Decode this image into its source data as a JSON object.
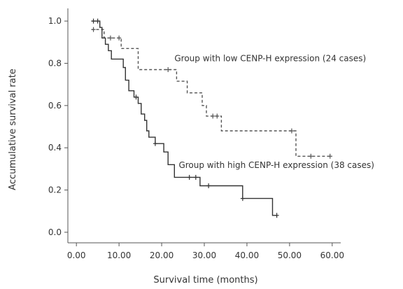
{
  "chart_data": {
    "type": "line",
    "xlabel": "Survival time (months)",
    "ylabel": "Accumulative survival rate",
    "xlim": [
      -2,
      62
    ],
    "ylim": [
      -0.05,
      1.06
    ],
    "xticks": [
      "0.00",
      "10.00",
      "20.00",
      "30.00",
      "40.00",
      "50.00",
      "60.00"
    ],
    "yticks": [
      "0.0",
      "0.2",
      "0.4",
      "0.6",
      "0.8",
      "1.0"
    ],
    "xtick_values": [
      0,
      10,
      20,
      30,
      40,
      50,
      60
    ],
    "ytick_values": [
      0,
      0.2,
      0.4,
      0.6,
      0.8,
      1.0
    ],
    "grid": false,
    "series": [
      {
        "name": "Group with low CENP-H expression (24 cases)",
        "style": "dashed",
        "color": "#555555",
        "steps": [
          [
            3.5,
            0.96
          ],
          [
            6.5,
            0.96
          ],
          [
            6.5,
            0.92
          ],
          [
            10.5,
            0.92
          ],
          [
            10.5,
            0.87
          ],
          [
            14.5,
            0.87
          ],
          [
            14.5,
            0.77
          ],
          [
            23.5,
            0.77
          ],
          [
            23.5,
            0.715
          ],
          [
            26,
            0.715
          ],
          [
            26,
            0.66
          ],
          [
            29.5,
            0.66
          ],
          [
            29.5,
            0.6
          ],
          [
            30.5,
            0.6
          ],
          [
            30.5,
            0.55
          ],
          [
            34,
            0.55
          ],
          [
            34,
            0.48
          ],
          [
            51.5,
            0.48
          ],
          [
            51.5,
            0.36
          ],
          [
            60,
            0.36
          ]
        ],
        "censored": [
          [
            4,
            0.96
          ],
          [
            8,
            0.92
          ],
          [
            10,
            0.92
          ],
          [
            21.5,
            0.77
          ],
          [
            32,
            0.55
          ],
          [
            33,
            0.55
          ],
          [
            50.5,
            0.48
          ],
          [
            55,
            0.36
          ],
          [
            59.5,
            0.36
          ]
        ]
      },
      {
        "name": "Group with high CENP-H expression (38 cases)",
        "style": "solid",
        "color": "#333333",
        "steps": [
          [
            3.5,
            1.0
          ],
          [
            5.5,
            1.0
          ],
          [
            5.5,
            0.97
          ],
          [
            6,
            0.97
          ],
          [
            6,
            0.92
          ],
          [
            6.8,
            0.92
          ],
          [
            6.8,
            0.89
          ],
          [
            7.5,
            0.89
          ],
          [
            7.5,
            0.86
          ],
          [
            8.2,
            0.86
          ],
          [
            8.2,
            0.82
          ],
          [
            11,
            0.82
          ],
          [
            11,
            0.78
          ],
          [
            11.5,
            0.78
          ],
          [
            11.5,
            0.72
          ],
          [
            12.3,
            0.72
          ],
          [
            12.3,
            0.67
          ],
          [
            13.5,
            0.67
          ],
          [
            13.5,
            0.64
          ],
          [
            14.5,
            0.64
          ],
          [
            14.5,
            0.61
          ],
          [
            15.2,
            0.61
          ],
          [
            15.2,
            0.56
          ],
          [
            16,
            0.56
          ],
          [
            16,
            0.53
          ],
          [
            16.5,
            0.53
          ],
          [
            16.5,
            0.48
          ],
          [
            17,
            0.48
          ],
          [
            17,
            0.45
          ],
          [
            18.5,
            0.45
          ],
          [
            18.5,
            0.42
          ],
          [
            20.5,
            0.42
          ],
          [
            20.5,
            0.38
          ],
          [
            21.5,
            0.38
          ],
          [
            21.5,
            0.32
          ],
          [
            23,
            0.32
          ],
          [
            23,
            0.26
          ],
          [
            29,
            0.26
          ],
          [
            29,
            0.22
          ],
          [
            39,
            0.22
          ],
          [
            39,
            0.16
          ],
          [
            46,
            0.16
          ],
          [
            46,
            0.08
          ],
          [
            47,
            0.08
          ]
        ],
        "censored": [
          [
            4,
            1.0
          ],
          [
            5,
            1.0
          ],
          [
            14,
            0.64
          ],
          [
            18.5,
            0.42
          ],
          [
            26.5,
            0.26
          ],
          [
            28,
            0.26
          ],
          [
            31,
            0.22
          ],
          [
            39,
            0.16
          ],
          [
            47,
            0.08
          ]
        ]
      }
    ],
    "annotations": [
      {
        "text": "Group with low CENP-H expression (24 cases)",
        "x": 23,
        "y": 0.81
      },
      {
        "text": "Group with high CENP-H expression (38 cases)",
        "x": 24,
        "y": 0.305
      }
    ]
  }
}
